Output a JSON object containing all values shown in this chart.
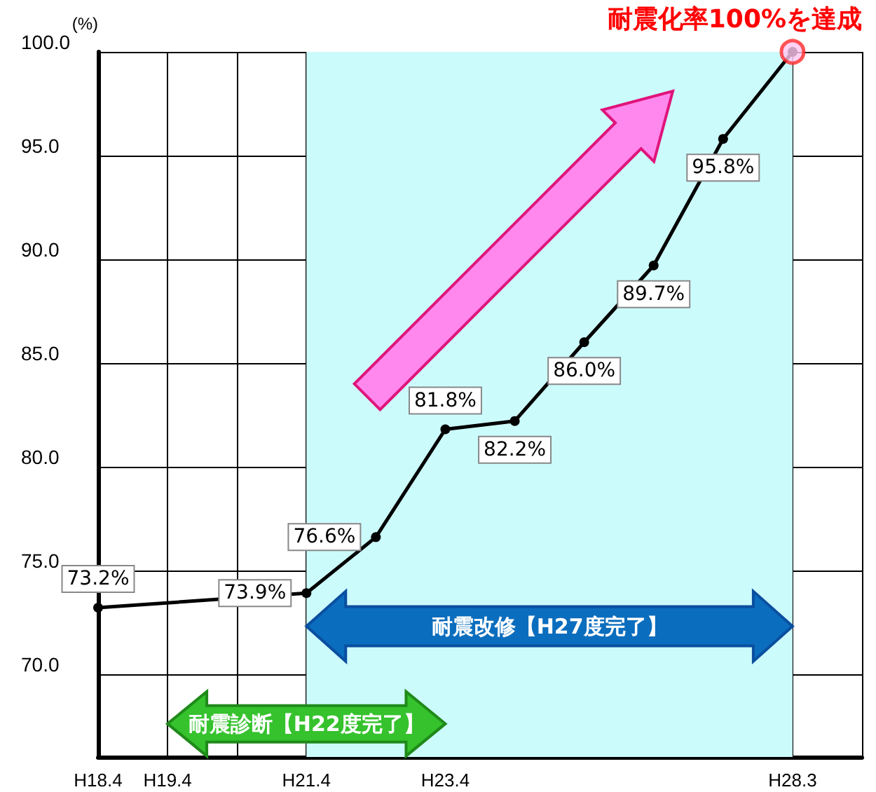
{
  "chart_data": {
    "type": "line",
    "title": "耐震化率100%を達成",
    "ylabel": "(%)",
    "categories": [
      "H18.4",
      "H19.4",
      null,
      "H21.4",
      null,
      "H23.4",
      null,
      null,
      null,
      null,
      "H28.3"
    ],
    "series": [
      {
        "type": "line",
        "color": "#000000",
        "values": [
          73.2,
          null,
          null,
          73.9,
          76.6,
          81.8,
          82.2,
          86.0,
          89.7,
          95.8,
          100
        ],
        "value_labels": [
          "73.2%",
          null,
          null,
          "73.9%",
          "76.6%",
          "81.8%",
          "82.2%",
          "86.0%",
          "89.7%",
          "95.8%",
          null
        ]
      },
      {
        "type": "scatter",
        "color": "#ff2a2a",
        "x": [
          "H28.3"
        ],
        "values": [
          100
        ]
      }
    ],
    "ylim": [
      66,
      100
    ],
    "yticks": [
      {
        "value": 70,
        "label": "70.0"
      },
      {
        "value": 75,
        "label": "75.0"
      },
      {
        "value": 80,
        "label": "80.0"
      },
      {
        "value": 85,
        "label": "85.0"
      },
      {
        "value": 90,
        "label": "90.0"
      },
      {
        "value": 95,
        "label": "95.0"
      },
      {
        "value": 100,
        "label": "100.0"
      }
    ],
    "bands": [
      {
        "axis": "x",
        "from": "H21.4",
        "to": "H28.3",
        "color": "#ccfbfc"
      }
    ],
    "annotations": [
      "耐震改修【H27度完了】",
      "耐震診断【H22度完了】"
    ],
    "grid": true,
    "marker": "circle",
    "line_style": "solid"
  }
}
